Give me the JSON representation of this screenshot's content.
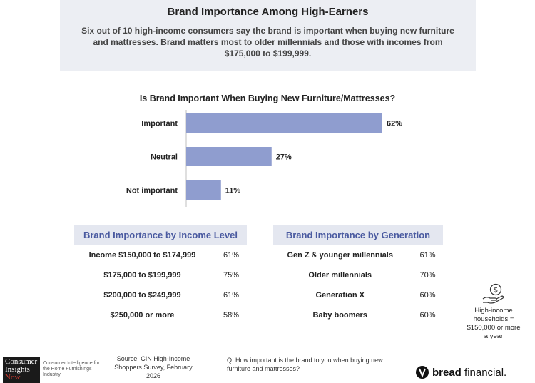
{
  "header": {
    "title": "Brand Importance Among High-Earners",
    "subtitle": "Six out of 10 high-income consumers say the brand is important when buying new furniture and mattresses. Brand matters most to older millennials and those with incomes from $175,000 to $199,999."
  },
  "chart_data": {
    "type": "bar",
    "orientation": "horizontal",
    "title": "Is Brand Important When Buying New Furniture/Mattresses?",
    "categories": [
      "Important",
      "Neutral",
      "Not important"
    ],
    "values": [
      62,
      27,
      11
    ],
    "labels": [
      "62%",
      "27%",
      "11%"
    ],
    "unit": "%",
    "xlim": [
      0,
      62
    ],
    "grid": false,
    "legend": false,
    "colors": {
      "bar": "#8f9dcf",
      "axis": "#bfbfbf"
    }
  },
  "income_table": {
    "title": "Brand Importance by Income Level",
    "rows": [
      {
        "label": "Income $150,000 to $174,999",
        "value": "61%"
      },
      {
        "label": "$175,000 to $199,999",
        "value": "75%"
      },
      {
        "label": "$200,000 to $249,999",
        "value": "61%"
      },
      {
        "label": "$250,000 or more",
        "value": "58%"
      }
    ]
  },
  "generation_table": {
    "title": "Brand Importance by Generation",
    "rows": [
      {
        "label": "Gen Z & younger millennials",
        "value": "61%"
      },
      {
        "label": "Older millennials",
        "value": "70%"
      },
      {
        "label": "Generation X",
        "value": "60%"
      },
      {
        "label": "Baby boomers",
        "value": "60%"
      }
    ]
  },
  "side_note": {
    "icon": "hand-coin-icon",
    "text": "High-income households = $150,000 or more a year"
  },
  "footer": {
    "cin_logo": {
      "line1": "Consumer",
      "line2": "Insights",
      "line3": "Now"
    },
    "cin_tagline": "Consumer Intelligence for the Home Furnishings Industry",
    "source": "Source: CIN High-Income Shoppers Survey, February 2026",
    "question": "Q: How important is the brand to you when buying new furniture and mattresses?",
    "brand": {
      "bold": "bread",
      "rest": " financial."
    }
  }
}
